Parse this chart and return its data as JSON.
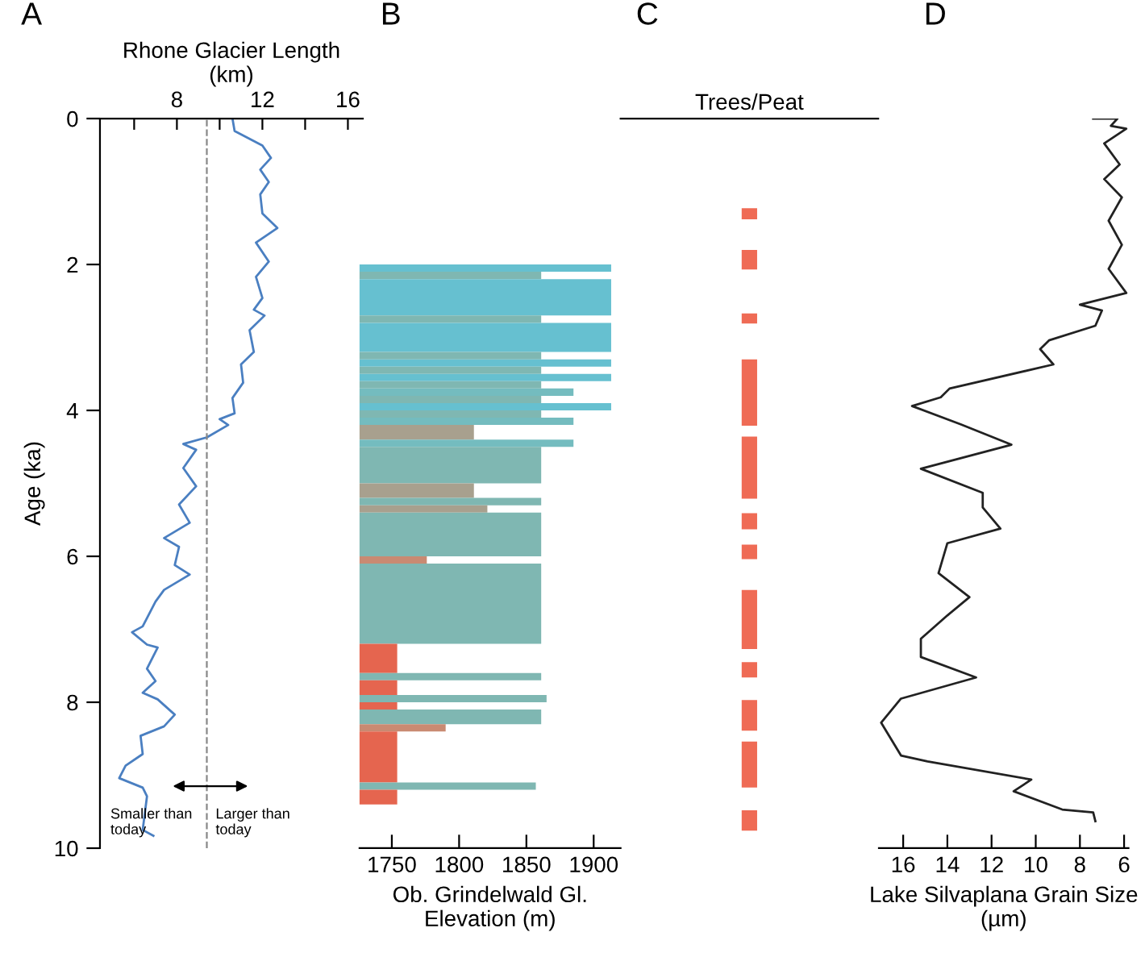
{
  "chart_data": [
    {
      "type": "line",
      "title": "A",
      "xlabel": "Rhone Glacier Length\n(km)",
      "ylabel": "Age (ka)",
      "xlim": [
        4.4,
        16.7
      ],
      "xticks": [
        {
          "value": 6,
          "label": null
        },
        8,
        {
          "value": 10,
          "label": null
        },
        12,
        {
          "value": 14,
          "label": null
        },
        16
      ],
      "ylim": [
        10,
        0
      ],
      "yticks": [
        0,
        2,
        4,
        6,
        8,
        10
      ],
      "ref_lines": [
        {
          "axis": "x",
          "value": 9.4,
          "color": "#888888",
          "line_style": "dashed"
        }
      ],
      "annotations": [
        "Smaller than\ntoday",
        "Larger than\ntoday"
      ],
      "series": [
        {
          "color": "#4a7fc1",
          "x": [
            10.6,
            10.7,
            12.0,
            12.4,
            11.9,
            12.3,
            11.9,
            12.0,
            12.7,
            11.7,
            12.3,
            11.7,
            12.0,
            11.6,
            12.1,
            11.4,
            11.6,
            11.0,
            11.1,
            10.6,
            10.7,
            10.0,
            10.4,
            9.4,
            8.3,
            8.9,
            8.3,
            8.9,
            8.1,
            8.6,
            7.4,
            8.1,
            7.9,
            8.6,
            7.4,
            7.0,
            6.4,
            5.9,
            6.6,
            7.1,
            6.6,
            7.0,
            6.4,
            7.1,
            7.9,
            7.4,
            6.3,
            6.4,
            5.6,
            5.3,
            6.4,
            6.6,
            6.4,
            6.9
          ],
          "values": [
            0.0,
            0.17,
            0.37,
            0.54,
            0.7,
            0.87,
            1.04,
            1.3,
            1.5,
            1.7,
            1.96,
            2.17,
            2.46,
            2.62,
            2.7,
            2.9,
            3.2,
            3.37,
            3.62,
            3.83,
            4.04,
            4.12,
            4.2,
            4.37,
            4.46,
            4.54,
            4.79,
            5.04,
            5.29,
            5.54,
            5.75,
            5.87,
            6.12,
            6.25,
            6.46,
            6.62,
            6.96,
            7.04,
            7.21,
            7.25,
            7.54,
            7.71,
            7.87,
            7.96,
            8.17,
            8.33,
            8.46,
            8.71,
            8.87,
            9.04,
            9.17,
            9.29,
            9.75,
            9.83
          ]
        }
      ]
    },
    {
      "type": "histogram",
      "orientation": "horizontal",
      "title": "B",
      "xlabel": "Ob. Grindelwald Gl.\nElevation (m)",
      "xlim": [
        1726,
        1920
      ],
      "xticks": [
        1750,
        1800,
        1850,
        1900
      ],
      "ylim": [
        10,
        0
      ],
      "tick_labels": "x",
      "bins": [
        2.0,
        2.1,
        2.2,
        2.7,
        2.8,
        3.2,
        3.3,
        3.4,
        3.5,
        3.6,
        3.7,
        3.8,
        3.9,
        4.0,
        4.1,
        4.2,
        4.4,
        4.5,
        5.0,
        5.2,
        5.3,
        5.4,
        6.0,
        6.1,
        7.2,
        7.6,
        7.7,
        7.9,
        8.0,
        8.1,
        8.3,
        8.4,
        9.1,
        9.2,
        9.4
      ],
      "values": [
        1913,
        1861,
        1913,
        1861,
        1913,
        1861,
        1913,
        1861,
        1913,
        1861,
        1885,
        1861,
        1913,
        1861,
        1885,
        1811,
        1885,
        1861,
        1811,
        1861,
        1821,
        1861,
        1776,
        1861,
        1754,
        1861,
        1754,
        1865,
        1754,
        1861,
        1790,
        1754,
        1857,
        1754
      ],
      "colors": [
        "#66c0d0",
        "#7fb7b2",
        "#66c0d0",
        "#7fb7b2",
        "#66c0d0",
        "#7fb7b2",
        "#66c0d0",
        "#7fb7b2",
        "#66c0d0",
        "#7fb7b2",
        "#74bcbf",
        "#7fb7b2",
        "#66c0d0",
        "#7fb7b2",
        "#74bcbf",
        "#a8a08e",
        "#74bcbf",
        "#7fb7b2",
        "#a8a08e",
        "#7fb7b2",
        "#a8a08e",
        "#7fb7b2",
        "#c98a72",
        "#7fb7b2",
        "#e5654f",
        "#7fb7b2",
        "#e5654f",
        "#7fb7b2",
        "#e5654f",
        "#7fb7b2",
        "#c98a72",
        "#e5654f",
        "#7fb7b2",
        "#e5654f"
      ]
    },
    {
      "type": "bar",
      "title": "C",
      "xlabel": "Trees/Peat",
      "categories": [
        null
      ],
      "ylim": [
        10,
        0
      ],
      "tick_labels": false,
      "series": [
        {
          "color": "#ef6b55",
          "base": [
            1.23
          ],
          "values": [
            0.15
          ]
        },
        {
          "color": "#ef6b55",
          "base": [
            1.8
          ],
          "values": [
            0.27
          ]
        },
        {
          "color": "#ef6b55",
          "base": [
            2.67
          ],
          "values": [
            0.14
          ]
        },
        {
          "color": "#ef6b55",
          "base": [
            3.3
          ],
          "values": [
            0.91
          ]
        },
        {
          "color": "#ef6b55",
          "base": [
            4.36
          ],
          "values": [
            0.85
          ]
        },
        {
          "color": "#ef6b55",
          "base": [
            5.41
          ],
          "values": [
            0.22
          ]
        },
        {
          "color": "#ef6b55",
          "base": [
            5.84
          ],
          "values": [
            0.2
          ]
        },
        {
          "color": "#ef6b55",
          "base": [
            6.46
          ],
          "values": [
            0.81
          ]
        },
        {
          "color": "#ef6b55",
          "base": [
            7.45
          ],
          "values": [
            0.21
          ]
        },
        {
          "color": "#ef6b55",
          "base": [
            7.97
          ],
          "values": [
            0.42
          ]
        },
        {
          "color": "#ef6b55",
          "base": [
            8.54
          ],
          "values": [
            0.63
          ]
        },
        {
          "color": "#ef6b55",
          "base": [
            9.48
          ],
          "values": [
            0.28
          ]
        }
      ]
    },
    {
      "type": "line",
      "title": "D",
      "xlabel": "Lake Silvaplana Grain Size\n(µm)",
      "xlim": [
        17.1,
        5.8
      ],
      "xticks": [
        16,
        14,
        12,
        10,
        8,
        6
      ],
      "ylim": [
        10,
        0
      ],
      "tick_labels": "x",
      "series": [
        {
          "color": "#222222",
          "x": [
            7.4,
            6.3,
            6.6,
            5.9,
            6.9,
            6.2,
            6.9,
            6.1,
            6.7,
            6.1,
            6.7,
            5.9,
            8.0,
            7.0,
            7.3,
            9.4,
            9.8,
            9.2,
            13.9,
            14.3,
            15.6,
            13.4,
            11.1,
            15.2,
            12.4,
            12.4,
            11.6,
            14.0,
            14.4,
            13.0,
            14.0,
            15.2,
            15.2,
            12.7,
            16.1,
            17.0,
            16.1,
            14.9,
            10.2,
            11.0,
            8.8,
            7.4,
            7.3
          ],
          "values": [
            0.0,
            0.0,
            0.1,
            0.14,
            0.34,
            0.63,
            0.83,
            1.08,
            1.4,
            1.73,
            2.06,
            2.39,
            2.55,
            2.63,
            2.84,
            3.04,
            3.16,
            3.37,
            3.7,
            3.82,
            3.94,
            4.19,
            4.47,
            4.8,
            5.13,
            5.33,
            5.62,
            5.82,
            6.23,
            6.56,
            6.81,
            7.13,
            7.38,
            7.66,
            7.95,
            8.28,
            8.73,
            8.81,
            9.06,
            9.22,
            9.47,
            9.51,
            9.63
          ]
        }
      ]
    }
  ]
}
